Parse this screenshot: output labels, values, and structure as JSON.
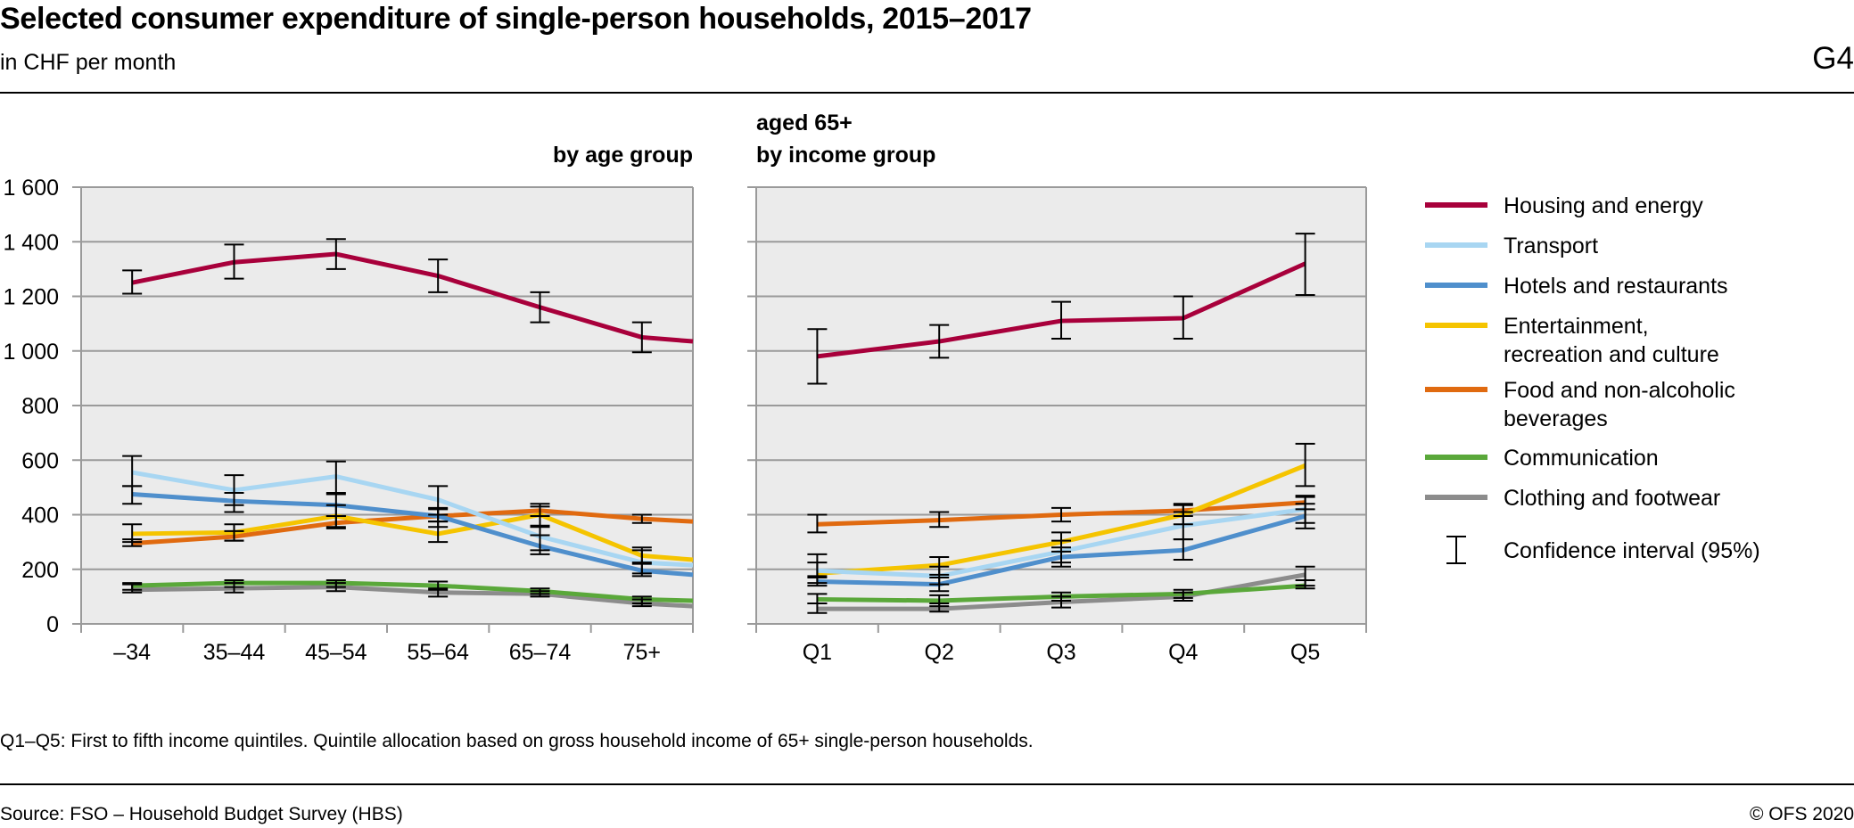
{
  "header": {
    "title": "Selected consumer expenditure of single-person households, 2015–2017",
    "subtitle": "in CHF per month",
    "figure_id": "G4"
  },
  "footer": {
    "footnote": "Q1–Q5: First to fifth income quintiles. Quintile allocation based on gross household income of 65+ single-person households.",
    "source": "Source: FSO – Household Budget Survey (HBS)",
    "copyright": "© OFS 2020"
  },
  "legend": {
    "placement": "right",
    "items": [
      {
        "label_lines": [
          "Housing and energy"
        ],
        "color": "#a8003b"
      },
      {
        "label_lines": [
          "Transport"
        ],
        "color": "#a8d6f2"
      },
      {
        "label_lines": [
          "Hotels and restaurants"
        ],
        "color": "#4f8fcc"
      },
      {
        "label_lines": [
          "Entertainment,",
          "recreation and culture"
        ],
        "color": "#f5c400"
      },
      {
        "label_lines": [
          "Food and non-alcoholic",
          "beverages"
        ],
        "color": "#e06a10"
      },
      {
        "label_lines": [
          "Communication"
        ],
        "color": "#5aa83a"
      },
      {
        "label_lines": [
          "Clothing and footwear"
        ],
        "color": "#8c8c8c"
      }
    ],
    "ci_label": "Confidence interval (95%)"
  },
  "chart_data": [
    {
      "type": "line",
      "title_lines": [
        "by age group"
      ],
      "categories": [
        "–34",
        "35–44",
        "45–54",
        "55–64",
        "65–74",
        "75+"
      ],
      "ylim": [
        0,
        1600
      ],
      "yticks": [
        0,
        200,
        400,
        600,
        800,
        1000,
        1200,
        1400,
        1600
      ],
      "ytick_labels": [
        "0",
        "200",
        "400",
        "600",
        "800",
        "1 000",
        "1 200",
        "1 400",
        "1 600"
      ],
      "grid": true,
      "series": [
        {
          "name": "Housing and energy",
          "color": "#a8003b",
          "values": [
            1250,
            1325,
            1355,
            1275,
            1160,
            1050
          ],
          "end_value": 1035,
          "ci": [
            [
              1210,
              1295
            ],
            [
              1265,
              1390
            ],
            [
              1300,
              1410
            ],
            [
              1215,
              1335
            ],
            [
              1105,
              1215
            ],
            [
              995,
              1105
            ]
          ]
        },
        {
          "name": "Transport",
          "color": "#a8d6f2",
          "values": [
            555,
            490,
            540,
            455,
            320,
            225
          ],
          "end_value": 215,
          "ci": [
            [
              505,
              615
            ],
            [
              435,
              545
            ],
            [
              480,
              595
            ],
            [
              400,
              505
            ],
            [
              270,
              360
            ],
            [
              185,
              270
            ]
          ]
        },
        {
          "name": "Hotels and restaurants",
          "color": "#4f8fcc",
          "values": [
            475,
            450,
            435,
            395,
            285,
            195
          ],
          "end_value": 180,
          "ci": [
            [
              440,
              505
            ],
            [
              410,
              480
            ],
            [
              395,
              475
            ],
            [
              355,
              425
            ],
            [
              255,
              325
            ],
            [
              175,
              225
            ]
          ]
        },
        {
          "name": "Entertainment, recreation and culture",
          "color": "#f5c400",
          "values": [
            330,
            335,
            395,
            330,
            400,
            250
          ],
          "end_value": 235,
          "ci": [
            [
              300,
              365
            ],
            [
              305,
              365
            ],
            [
              355,
              435
            ],
            [
              300,
              375
            ],
            [
              355,
              430
            ],
            [
              220,
              280
            ]
          ]
        },
        {
          "name": "Food and non-alcoholic beverages",
          "color": "#e06a10",
          "values": [
            295,
            320,
            370,
            395,
            415,
            385
          ],
          "end_value": 375,
          "ci": [
            [
              285,
              310
            ],
            [
              305,
              340
            ],
            [
              350,
              395
            ],
            [
              375,
              420
            ],
            [
              395,
              440
            ],
            [
              370,
              400
            ]
          ]
        },
        {
          "name": "Communication",
          "color": "#5aa83a",
          "values": [
            140,
            150,
            150,
            140,
            120,
            90
          ],
          "end_value": 85,
          "ci": [
            [
              125,
              150
            ],
            [
              135,
              160
            ],
            [
              135,
              160
            ],
            [
              125,
              155
            ],
            [
              110,
              130
            ],
            [
              75,
              100
            ]
          ]
        },
        {
          "name": "Clothing and footwear",
          "color": "#8c8c8c",
          "values": [
            125,
            130,
            135,
            115,
            110,
            75
          ],
          "end_value": 65,
          "ci": [
            [
              115,
              145
            ],
            [
              115,
              150
            ],
            [
              120,
              150
            ],
            [
              100,
              130
            ],
            [
              100,
              120
            ],
            [
              65,
              90
            ]
          ]
        }
      ]
    },
    {
      "type": "line",
      "title_lines": [
        "aged 65+",
        "by income group"
      ],
      "categories": [
        "Q1",
        "Q2",
        "Q3",
        "Q4",
        "Q5"
      ],
      "ylim": [
        0,
        1600
      ],
      "grid": true,
      "series": [
        {
          "name": "Housing and energy",
          "color": "#a8003b",
          "values": [
            980,
            1035,
            1110,
            1120,
            1320
          ],
          "ci": [
            [
              880,
              1080
            ],
            [
              975,
              1095
            ],
            [
              1045,
              1180
            ],
            [
              1045,
              1200
            ],
            [
              1205,
              1430
            ]
          ]
        },
        {
          "name": "Transport",
          "color": "#a8d6f2",
          "values": [
            195,
            175,
            265,
            360,
            420
          ],
          "ci": [
            [
              170,
              225
            ],
            [
              145,
              210
            ],
            [
              225,
              305
            ],
            [
              310,
              410
            ],
            [
              370,
              465
            ]
          ]
        },
        {
          "name": "Hotels and restaurants",
          "color": "#4f8fcc",
          "values": [
            155,
            145,
            245,
            270,
            395
          ],
          "ci": [
            [
              140,
              175
            ],
            [
              120,
              170
            ],
            [
              210,
              280
            ],
            [
              235,
              310
            ],
            [
              350,
              440
            ]
          ]
        },
        {
          "name": "Entertainment, recreation and culture",
          "color": "#f5c400",
          "values": [
            185,
            215,
            300,
            400,
            580
          ],
          "ci": [
            [
              150,
              255
            ],
            [
              180,
              245
            ],
            [
              265,
              335
            ],
            [
              365,
              435
            ],
            [
              505,
              660
            ]
          ]
        },
        {
          "name": "Food and non-alcoholic beverages",
          "color": "#e06a10",
          "values": [
            365,
            380,
            400,
            415,
            445
          ],
          "ci": [
            [
              335,
              400
            ],
            [
              355,
              410
            ],
            [
              375,
              425
            ],
            [
              395,
              440
            ],
            [
              420,
              470
            ]
          ]
        },
        {
          "name": "Communication",
          "color": "#5aa83a",
          "values": [
            90,
            85,
            100,
            110,
            140
          ],
          "ci": [
            [
              75,
              110
            ],
            [
              65,
              105
            ],
            [
              85,
              115
            ],
            [
              95,
              125
            ],
            [
              130,
              160
            ]
          ]
        },
        {
          "name": "Clothing and footwear",
          "color": "#8c8c8c",
          "values": [
            55,
            55,
            80,
            100,
            180
          ],
          "ci": [
            [
              40,
              75
            ],
            [
              45,
              75
            ],
            [
              60,
              100
            ],
            [
              85,
              115
            ],
            [
              140,
              210
            ]
          ]
        }
      ]
    }
  ]
}
